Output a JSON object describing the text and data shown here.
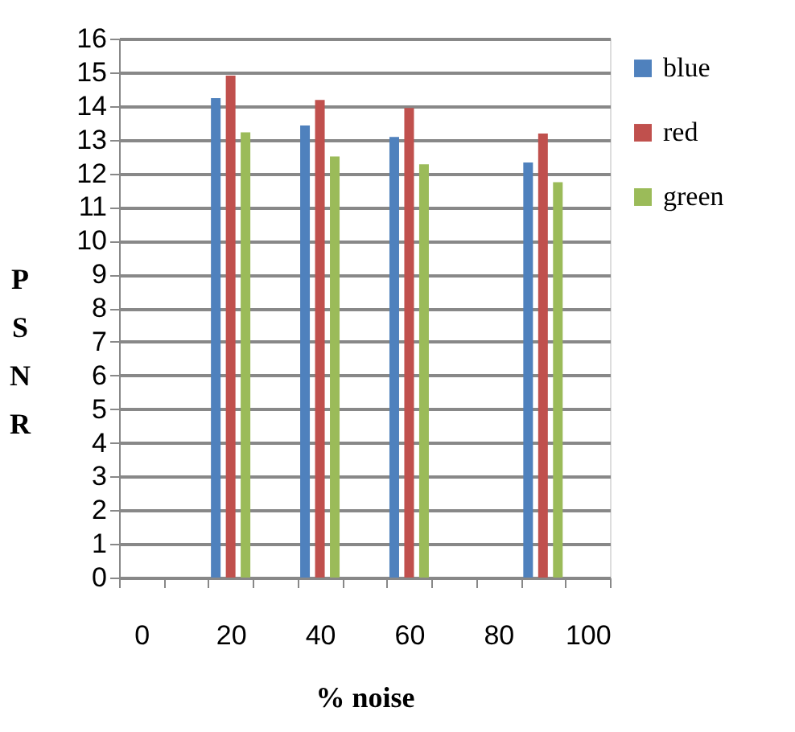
{
  "chart_data": {
    "type": "bar",
    "xlabel": "% noise",
    "ylabel": "PSNR",
    "categories": [
      "0",
      null,
      "20",
      null,
      "40",
      null,
      "60",
      null,
      "80",
      null,
      "100"
    ],
    "series": [
      {
        "name": "blue",
        "color": "#4f81bd",
        "values": [
          null,
          null,
          14.23,
          null,
          13.42,
          null,
          13.08,
          null,
          null,
          12.32,
          null
        ]
      },
      {
        "name": "red",
        "color": "#c0504d",
        "values": [
          null,
          null,
          14.9,
          null,
          14.18,
          null,
          13.94,
          null,
          null,
          13.18,
          null
        ]
      },
      {
        "name": "green",
        "color": "#9bbb59",
        "values": [
          null,
          null,
          13.22,
          null,
          12.5,
          null,
          12.27,
          null,
          null,
          11.74,
          null
        ]
      }
    ],
    "ylim": [
      0,
      16
    ],
    "yticks": [
      0,
      1,
      2,
      3,
      4,
      5,
      6,
      7,
      8,
      9,
      10,
      11,
      12,
      13,
      14,
      15,
      16
    ],
    "grid": "y",
    "legend": "right"
  }
}
